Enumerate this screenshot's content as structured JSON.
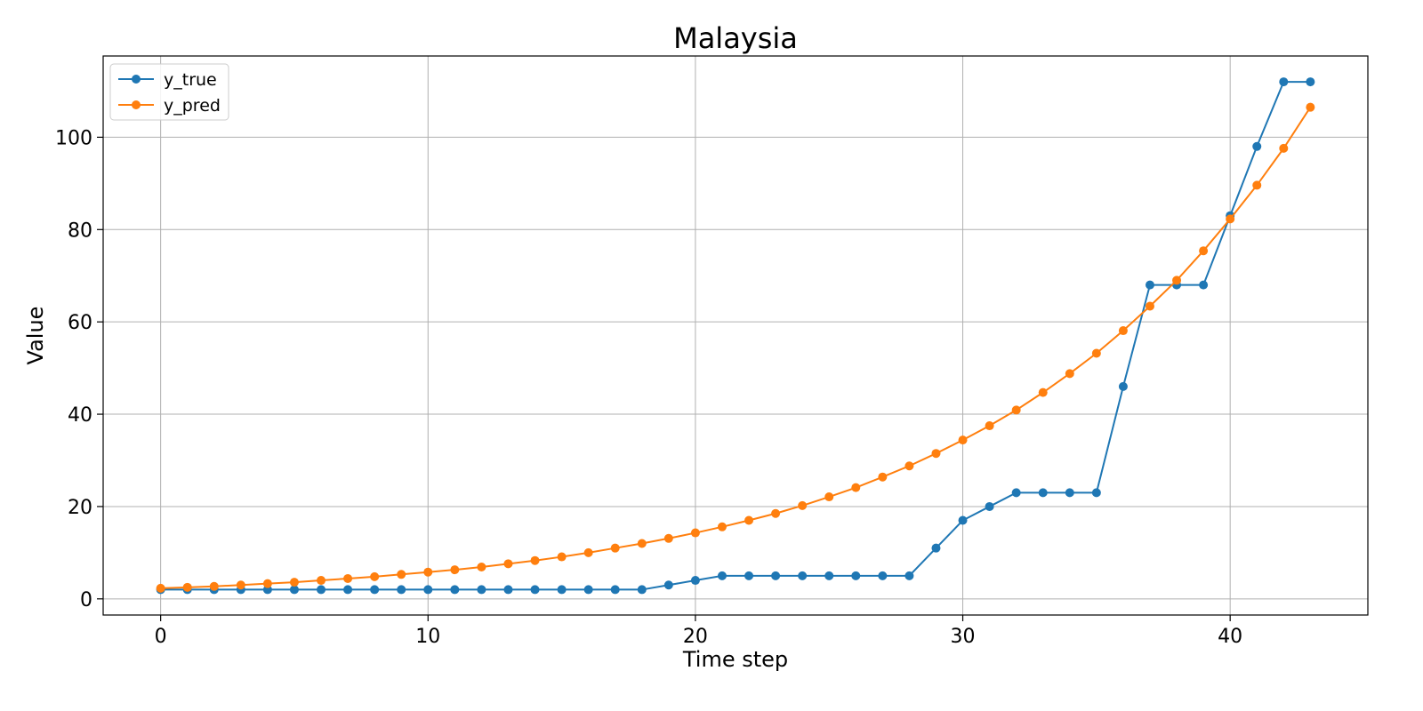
{
  "chart_data": {
    "type": "line",
    "title": "Malaysia",
    "xlabel": "Time step",
    "ylabel": "Value",
    "xlim": [
      -2.15,
      45.15
    ],
    "ylim": [
      -3.5,
      117.6
    ],
    "xticks": [
      0,
      10,
      20,
      30,
      40
    ],
    "yticks": [
      0,
      20,
      40,
      60,
      80,
      100
    ],
    "grid": true,
    "legend_position": "top-left",
    "x": [
      0,
      1,
      2,
      3,
      4,
      5,
      6,
      7,
      8,
      9,
      10,
      11,
      12,
      13,
      14,
      15,
      16,
      17,
      18,
      19,
      20,
      21,
      22,
      23,
      24,
      25,
      26,
      27,
      28,
      29,
      30,
      31,
      32,
      33,
      34,
      35,
      36,
      37,
      38,
      39,
      40,
      41,
      42,
      43
    ],
    "series": [
      {
        "name": "y_true",
        "color": "#1f77b4",
        "marker": "circle",
        "values": [
          2,
          2,
          2,
          2,
          2,
          2,
          2,
          2,
          2,
          2,
          2,
          2,
          2,
          2,
          2,
          2,
          2,
          2,
          2,
          3,
          4,
          5,
          5,
          5,
          5,
          5,
          5,
          5,
          5,
          11,
          17,
          20,
          23,
          23,
          23,
          23,
          46,
          68,
          68,
          68,
          83,
          98,
          112,
          112
        ]
      },
      {
        "name": "y_pred",
        "color": "#ff7f0e",
        "marker": "circle",
        "values": [
          2.3,
          2.5,
          2.7,
          3.0,
          3.3,
          3.6,
          4.0,
          4.4,
          4.8,
          5.3,
          5.8,
          6.3,
          6.9,
          7.6,
          8.3,
          9.1,
          10.0,
          11.0,
          12.0,
          13.1,
          14.3,
          15.6,
          17.0,
          18.5,
          20.2,
          22.1,
          24.1,
          26.4,
          28.8,
          31.5,
          34.4,
          37.5,
          40.9,
          44.7,
          48.8,
          53.2,
          58.1,
          63.4,
          69.0,
          75.4,
          82.3,
          89.6,
          97.6,
          106.5
        ]
      }
    ]
  }
}
